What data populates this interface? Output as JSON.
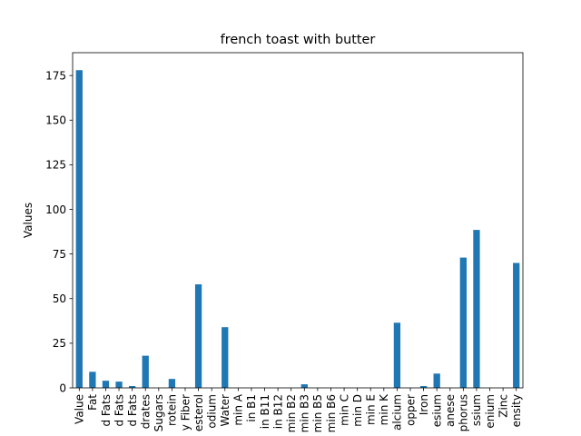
{
  "chart_data": {
    "type": "bar",
    "title": "french toast with butter",
    "xlabel": "",
    "ylabel": "Values",
    "ylim": [
      0,
      187.8
    ],
    "yticks": [
      0,
      25,
      50,
      75,
      100,
      125,
      150,
      175
    ],
    "grid": false,
    "categories": [
      "Value",
      "Fat",
      "d Fats",
      "d Fats",
      "d Fats",
      "drates",
      "Sugars",
      "rotein",
      "y Fiber",
      "esterol",
      "odium",
      "Water",
      "min A",
      "in B1",
      "in B11",
      "in B12",
      "min B2",
      "min B3",
      "min B5",
      "min B6",
      "min C",
      "min D",
      "min E",
      "min K",
      "alcium",
      "opper",
      "Iron",
      "esium",
      "anese",
      "phorus",
      "ssium",
      "enium",
      "Zinc",
      "ensity"
    ],
    "series": [
      {
        "color": "#1f77b4",
        "values": [
          178,
          9,
          4,
          3.5,
          1,
          18,
          0,
          5,
          0,
          58,
          0,
          34,
          0,
          0,
          0,
          0,
          0,
          2,
          0,
          0,
          0,
          0,
          0,
          0,
          36.5,
          0,
          1,
          8,
          0,
          73,
          88.5,
          0,
          0,
          70
        ]
      }
    ]
  }
}
